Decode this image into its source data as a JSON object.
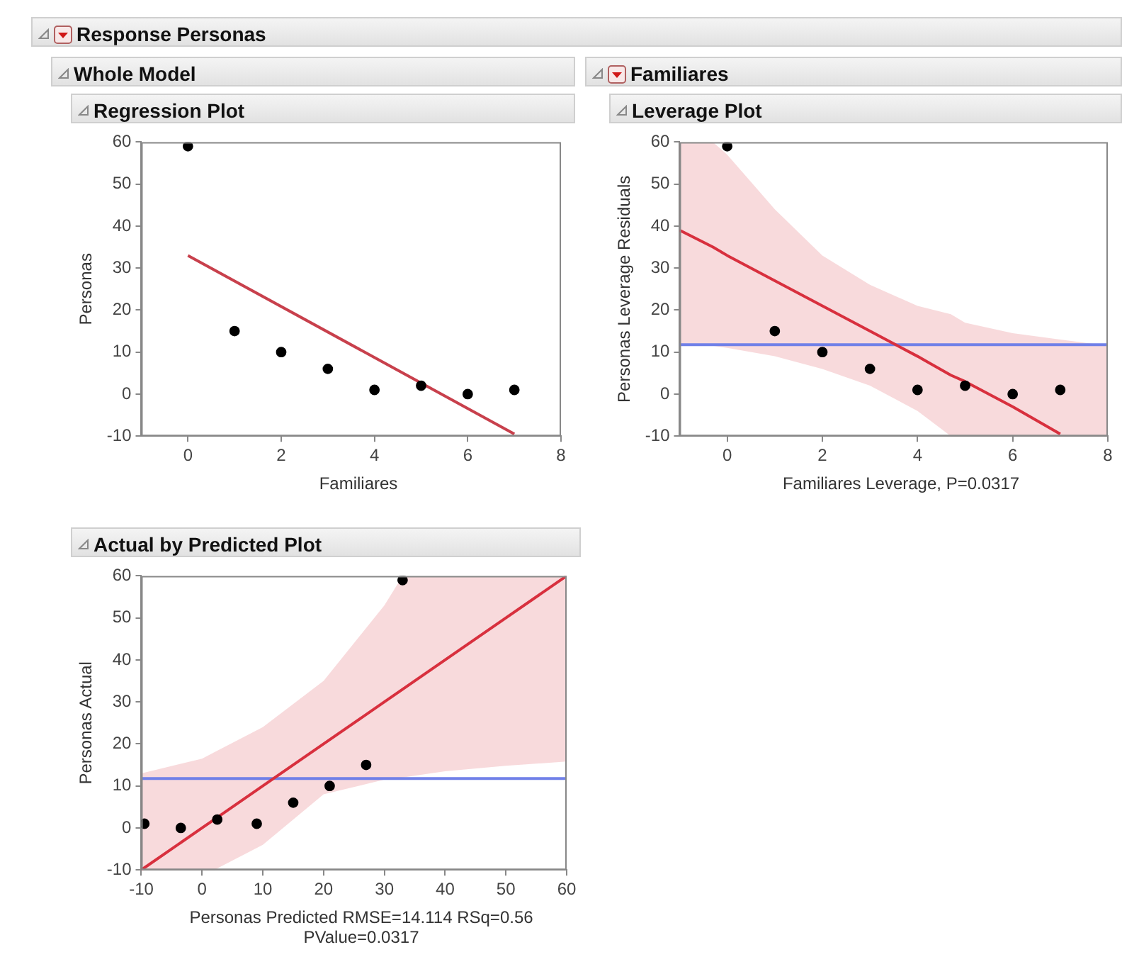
{
  "chart_data": [
    {
      "type": "scatter",
      "title": "Regression Plot",
      "annotations": [
        "Response Personas",
        "Whole Model"
      ],
      "xlabel": "Familiares",
      "ylabel": "Personas",
      "xlim": [
        -1,
        8
      ],
      "xticks": [
        0,
        2,
        4,
        6,
        8
      ],
      "ylim": [
        -10,
        60
      ],
      "yticks": [
        -10,
        0,
        10,
        20,
        30,
        40,
        50,
        60
      ],
      "grid": false,
      "legend": false,
      "series": [
        {
          "type": "scatter",
          "marker": "circle",
          "color": "#000000",
          "x": [
            0,
            1,
            2,
            3,
            4,
            5,
            6,
            7
          ],
          "values": [
            59,
            15,
            10,
            6,
            1,
            2,
            0,
            1
          ]
        },
        {
          "type": "line",
          "marker": "none",
          "color": "#c8404c",
          "x": [
            0,
            7
          ],
          "values": [
            33,
            -9.5
          ]
        }
      ]
    },
    {
      "type": "scatter",
      "title": "Leverage Plot",
      "annotations": [
        "Familiares"
      ],
      "xlabel": "Familiares Leverage, P=0.0317",
      "ylabel": "Personas Leverage Residuals",
      "xlim": [
        -1,
        8
      ],
      "xticks": [
        0,
        2,
        4,
        6,
        8
      ],
      "ylim": [
        -10,
        60
      ],
      "yticks": [
        -10,
        0,
        10,
        20,
        30,
        40,
        50,
        60
      ],
      "grid": false,
      "legend": false,
      "ref_lines": [
        {
          "axis": "y",
          "value": 11.75,
          "color": "#7080e8"
        }
      ],
      "series": [
        {
          "type": "scatter",
          "marker": "circle",
          "color": "#000000",
          "x": [
            0,
            1,
            2,
            3,
            4,
            5,
            6,
            7
          ],
          "values": [
            59,
            15,
            10,
            6,
            1,
            2,
            0,
            1
          ]
        },
        {
          "type": "line",
          "marker": "none",
          "color": "#d8303e",
          "x": [
            -1,
            -0.3,
            0,
            1,
            2,
            3,
            4,
            4.7,
            5,
            6,
            7,
            8
          ],
          "values": [
            39,
            35,
            33,
            27,
            21,
            15,
            9,
            4.5,
            3,
            -3,
            -9.5,
            null
          ],
          "upper": [
            60,
            60,
            57,
            44,
            33,
            26,
            21,
            19,
            17,
            14.5,
            13,
            11.5
          ],
          "lower": [
            12,
            11.5,
            11,
            9,
            6,
            2,
            -4,
            -10,
            -10,
            -10,
            -10,
            -10
          ]
        }
      ]
    },
    {
      "type": "scatter",
      "title": "Actual by Predicted Plot",
      "xlabel": "Personas Predicted RMSE=14.114 RSq=0.56 PValue=0.0317",
      "ylabel": "Personas Actual",
      "xlim": [
        -10,
        60
      ],
      "xticks": [
        -10,
        0,
        10,
        20,
        30,
        40,
        50,
        60
      ],
      "ylim": [
        -10,
        60
      ],
      "yticks": [
        -10,
        0,
        10,
        20,
        30,
        40,
        50,
        60
      ],
      "grid": false,
      "legend": false,
      "ref_lines": [
        {
          "axis": "y",
          "value": 11.75,
          "color": "#7080e8"
        }
      ],
      "series": [
        {
          "type": "scatter",
          "marker": "circle",
          "color": "#000000",
          "x": [
            33,
            27,
            21,
            15,
            9,
            2.5,
            -3.5,
            -9.5
          ],
          "values": [
            59,
            15,
            10,
            6,
            1,
            2,
            0,
            1
          ]
        },
        {
          "type": "line",
          "marker": "none",
          "color": "#d8303e",
          "x": [
            -10,
            0,
            2,
            10,
            20,
            30,
            33,
            40,
            50,
            60
          ],
          "values": [
            -10,
            0,
            2,
            10,
            20,
            30,
            33,
            40,
            50,
            60
          ],
          "upper": [
            13,
            16.5,
            18,
            24,
            35,
            53,
            60,
            60,
            60,
            60
          ],
          "lower": [
            -10,
            -10,
            -10,
            -4,
            8,
            11.5,
            12,
            13.5,
            14.8,
            15.8
          ]
        }
      ]
    }
  ]
}
